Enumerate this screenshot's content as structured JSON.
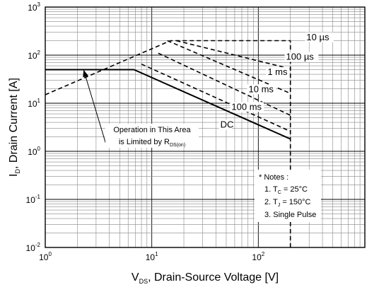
{
  "chart_data": {
    "type": "line",
    "scale": {
      "x": "log",
      "y": "log"
    },
    "xlim": [
      1,
      1000
    ],
    "ylim": [
      0.01,
      1000
    ],
    "grid": true,
    "xlabel": {
      "main": "V",
      "sub": "DS",
      "rest": ", Drain-Source Voltage [V]"
    },
    "ylabel": {
      "main": "I",
      "sub": "D",
      "rest": ", Drain Current [A]"
    },
    "x_ticks": [
      {
        "value": 1,
        "base": "10",
        "exp": "0"
      },
      {
        "value": 10,
        "base": "10",
        "exp": "1"
      },
      {
        "value": 100,
        "base": "10",
        "exp": "2"
      }
    ],
    "y_ticks": [
      {
        "value": 0.01,
        "base": "10",
        "exp": "-2"
      },
      {
        "value": 0.1,
        "base": "10",
        "exp": "-1"
      },
      {
        "value": 1,
        "base": "10",
        "exp": "0"
      },
      {
        "value": 10,
        "base": "10",
        "exp": "1"
      },
      {
        "value": 100,
        "base": "10",
        "exp": "2"
      },
      {
        "value": 1000,
        "base": "10",
        "exp": "3"
      }
    ],
    "series": [
      {
        "name": "DC",
        "style": "solid",
        "x": [
          1,
          6.8,
          200
        ],
        "y": [
          50,
          50,
          1.8
        ]
      },
      {
        "name": "100 ms",
        "style": "dashed",
        "x": [
          8,
          200
        ],
        "y": [
          65,
          2.6
        ]
      },
      {
        "name": "10 ms",
        "style": "dashed",
        "x": [
          11.5,
          200
        ],
        "y": [
          110,
          5.6
        ]
      },
      {
        "name": "1 ms",
        "style": "dashed",
        "x": [
          14,
          200
        ],
        "y": [
          200,
          16
        ]
      },
      {
        "name": "100 µs",
        "style": "dashed",
        "x": [
          17,
          200
        ],
        "y": [
          200,
          52
        ]
      },
      {
        "name": "10 µs",
        "style": "dashed",
        "x": [
          1,
          15,
          200
        ],
        "y": [
          15,
          200,
          200
        ]
      },
      {
        "name": "",
        "style": "dashed",
        "x": [
          200,
          200
        ],
        "y": [
          0.01,
          200
        ]
      }
    ],
    "curve_labels": [
      {
        "series": "10 µs",
        "text": "10 µs",
        "x": 283,
        "y": 205
      },
      {
        "series": "100 µs",
        "text": "100 µs",
        "x": 182,
        "y": 80
      },
      {
        "series": "1 ms",
        "text": "1 ms",
        "x": 122,
        "y": 39
      },
      {
        "series": "10 ms",
        "text": "10 ms",
        "x": 81,
        "y": 17
      },
      {
        "series": "100 ms",
        "text": "100 ms",
        "x": 56,
        "y": 7.3
      },
      {
        "series": "DC",
        "text": "DC",
        "x": 44,
        "y": 3.1
      }
    ],
    "annotation": {
      "line1": "Operation in This Area",
      "line2_main": "is Limited by R",
      "line2_sub": "DS(on)",
      "arrow_from": {
        "x": 3.7,
        "y": 1.45
      },
      "arrow_to": {
        "x": 2.3,
        "y": 48
      }
    },
    "notes": {
      "title": "* Notes :",
      "items": [
        {
          "prefix": "1. T",
          "sub": "C",
          "suffix": " = 25°C"
        },
        {
          "prefix": "2. T",
          "sub": "J",
          "suffix": " = 150°C"
        },
        {
          "prefix": "3. Single Pulse",
          "sub": "",
          "suffix": ""
        }
      ]
    }
  }
}
